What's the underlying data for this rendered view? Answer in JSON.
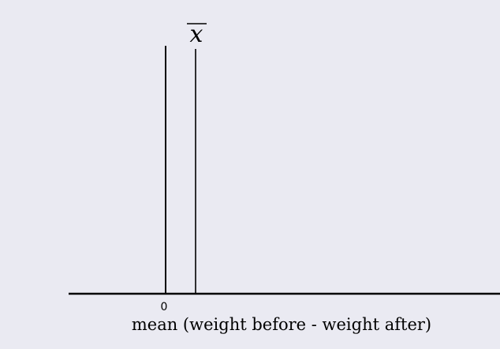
{
  "diagram": {
    "zero_tick_label": "0",
    "mean_marker_label": "x",
    "mean_marker_overline": true,
    "xlabel": "mean (weight before - weight after)",
    "background_color": "#eaeaf2",
    "line_color": "#000000"
  }
}
